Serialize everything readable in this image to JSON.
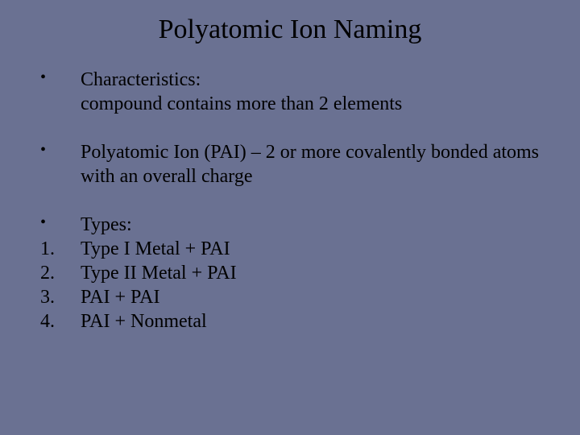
{
  "background_color": "#6a7192",
  "text_color": "#000000",
  "font_family": "Georgia, 'Times New Roman', Times, serif",
  "title": "Polyatomic Ion Naming",
  "title_fontsize": 34,
  "body_fontsize": 24,
  "items": [
    {
      "marker": "•",
      "text": "Characteristics:\ncompound contains more than 2 elements",
      "spaced": true
    },
    {
      "marker": "•",
      "text": "Polyatomic Ion (PAI) – 2 or more covalently bonded atoms with an overall charge",
      "spaced": true
    },
    {
      "marker": "•",
      "text": "Types:",
      "spaced": false
    },
    {
      "marker": "1.",
      "text": "Type I Metal + PAI",
      "spaced": false
    },
    {
      "marker": "2.",
      "text": "Type II Metal + PAI",
      "spaced": false
    },
    {
      "marker": "3.",
      "text": "PAI + PAI",
      "spaced": false
    },
    {
      "marker": "4.",
      "text": "PAI + Nonmetal",
      "spaced": false
    }
  ]
}
